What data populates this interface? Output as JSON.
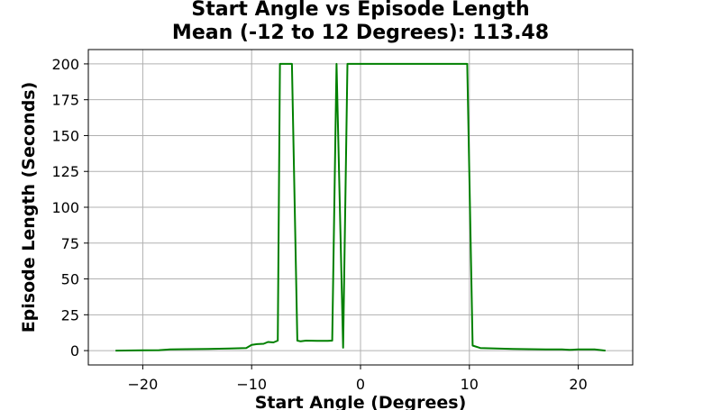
{
  "chart_data": {
    "type": "line",
    "title_line1": "Start Angle vs Episode Length",
    "title_line2": "Mean (-12 to 12 Degrees): 113.48",
    "xlabel": "Start Angle (Degrees)",
    "ylabel": "Episode Length (Seconds)",
    "xlim": [
      -25,
      25
    ],
    "ylim": [
      -10,
      210
    ],
    "grid": true,
    "x_ticks": [
      -20,
      -10,
      0,
      10,
      20
    ],
    "x_tick_labels": [
      "−20",
      "−10",
      "0",
      "10",
      "20"
    ],
    "y_ticks": [
      0,
      25,
      50,
      75,
      100,
      125,
      150,
      175,
      200
    ],
    "y_tick_labels": [
      "0",
      "25",
      "50",
      "75",
      "100",
      "125",
      "150",
      "175",
      "200"
    ],
    "series": [
      {
        "color": "#008000",
        "x": [
          -22.5,
          -20,
          -18.5,
          -17.5,
          -16,
          -14,
          -12,
          -10.5,
          -10,
          -9.5,
          -8.9,
          -8.5,
          -8,
          -7.6,
          -7.4,
          -7.1,
          -6.3,
          -5.8,
          -5.5,
          -5,
          -4,
          -3,
          -2.6,
          -2.2,
          -1.6,
          -1.2,
          0,
          5,
          9.8,
          10.3,
          11,
          14,
          17,
          18.5,
          19.2,
          20,
          21.5,
          22.5
        ],
        "y": [
          0,
          0.2,
          0.3,
          0.8,
          1,
          1.2,
          1.5,
          1.8,
          4,
          4.5,
          4.8,
          6,
          5.7,
          7,
          200,
          200,
          200,
          7,
          6.5,
          7,
          6.8,
          6.8,
          7,
          200,
          2,
          200,
          200,
          200,
          200,
          3.5,
          1.8,
          1.2,
          0.9,
          0.8,
          0.5,
          0.8,
          0.8,
          0
        ]
      }
    ]
  }
}
